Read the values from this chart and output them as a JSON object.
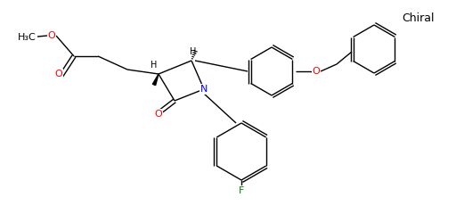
{
  "background_color": "#ffffff",
  "chiral_label": "Chiral",
  "atom_colors": {
    "O": "#ff0000",
    "N": "#0000ff",
    "F": "#008000",
    "C": "#000000",
    "H": "#000000"
  },
  "line_color": "#000000",
  "font_size": 8,
  "chiral_font_size": 9
}
